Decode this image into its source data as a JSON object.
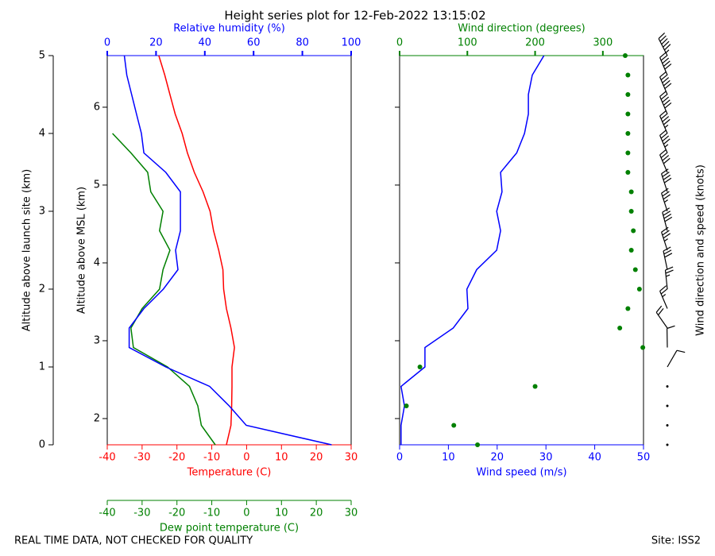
{
  "chart_data": {
    "type": "sounding",
    "title": "Height series plot for 12-Feb-2022 13:15:02",
    "footer_left": "REAL TIME DATA, NOT CHECKED FOR QUALITY",
    "footer_right": "Site: ISS2",
    "ylabel": "Altitude above launch site (km)",
    "ylim": [
      0,
      5
    ],
    "yticks": [
      0,
      1,
      2,
      3,
      4,
      5
    ],
    "altitude": [
      0,
      0.25,
      0.5,
      0.75,
      1,
      1.25,
      1.5,
      1.75,
      2,
      2.25,
      2.5,
      2.75,
      3,
      3.25,
      3.5,
      3.75,
      4,
      4.25,
      4.5,
      4.75,
      5
    ],
    "msl_axis": {
      "label": "Altitude above MSL (km)",
      "ylim": [
        1.663,
        6.663
      ],
      "yticks": [
        2,
        3,
        4,
        5,
        6
      ]
    },
    "temp_axis": {
      "label": "Temperature (C)",
      "color": "red",
      "xlim": [
        -40,
        30
      ],
      "xticks": [
        -40,
        -30,
        -20,
        -10,
        0,
        10,
        20,
        30
      ]
    },
    "dewpoint_axis": {
      "label": "Dew point temperature (C)",
      "color": "green",
      "xlim": [
        -40,
        30
      ],
      "xticks": [
        -40,
        -30,
        -20,
        -10,
        0,
        10,
        20,
        30
      ]
    },
    "rh_axis": {
      "label": "Relative humidity (%)",
      "color": "blue",
      "xlim": [
        0,
        100
      ],
      "xticks": [
        0,
        20,
        40,
        60,
        80,
        100
      ]
    },
    "speed_axis": {
      "label": "Wind speed (m/s)",
      "color": "blue",
      "xlim": [
        0,
        50
      ],
      "xticks": [
        0,
        10,
        20,
        30,
        40,
        50
      ]
    },
    "direction_axis": {
      "label": "Wind direction (degrees)",
      "color": "green",
      "xlim": [
        0,
        360
      ],
      "xticks": [
        0,
        100,
        200,
        300
      ]
    },
    "barb_label": "Wind direction and speed (knots)",
    "series": [
      {
        "axis": "temp_axis",
        "color": "red",
        "style": "line",
        "values": [
          -5.8,
          -4.5,
          -4.3,
          -4.2,
          -4.2,
          -3.5,
          -4.5,
          -5.8,
          -6.6,
          -6.8,
          -8,
          -9.5,
          -10.5,
          -12.5,
          -15,
          -17,
          -18.5,
          -20.5,
          -22,
          -23.5,
          -25.2
        ]
      },
      {
        "axis": "dewpoint_axis",
        "color": "green",
        "style": "line",
        "values": [
          -9,
          -13,
          -14,
          -16.4,
          -22.7,
          -32.5,
          -33.2,
          -30,
          -25,
          -24,
          -22,
          -25,
          -24,
          -27.5,
          -28.4,
          -33.2,
          -38.5,
          null,
          null,
          null,
          null
        ]
      },
      {
        "axis": "rh_axis",
        "color": "blue",
        "style": "line",
        "values": [
          92,
          57,
          50,
          42,
          24,
          9,
          9,
          15,
          23,
          29,
          28,
          30,
          30,
          30,
          24,
          15,
          14,
          12,
          10,
          8,
          7
        ]
      },
      {
        "axis": "speed_axis",
        "color": "blue",
        "style": "line",
        "values": [
          0.3,
          0.3,
          1,
          0.3,
          5.2,
          5.2,
          11,
          14,
          13.8,
          15.8,
          19.9,
          20.7,
          19.9,
          21,
          20.7,
          24,
          25.6,
          26.4,
          26.4,
          27.2,
          29.6
        ]
      },
      {
        "axis": "direction_axis",
        "color": "green",
        "style": "dots",
        "values": [
          115,
          80,
          10,
          200,
          30,
          359,
          325,
          337,
          354,
          348,
          342,
          345,
          342,
          342,
          337,
          337,
          337,
          337,
          337,
          337,
          333
        ]
      }
    ]
  }
}
